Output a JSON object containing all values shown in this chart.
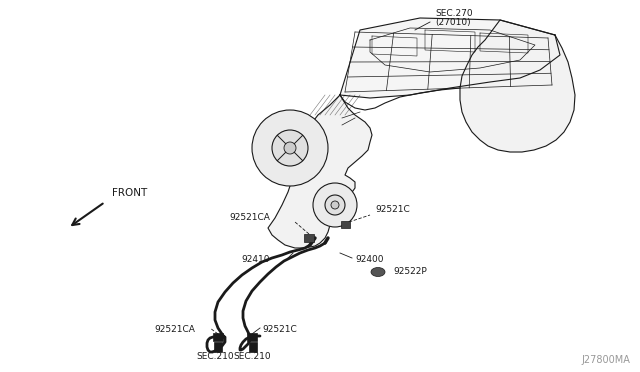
{
  "bg_color": "#ffffff",
  "line_color": "#1a1a1a",
  "text_color": "#1a1a1a",
  "fig_width": 6.4,
  "fig_height": 3.72,
  "dpi": 100,
  "watermark": "J27800MA",
  "sec270_text": "SEC.270",
  "sec270sub_text": "(27010)",
  "front_text": "FRONT",
  "label_92521ca_top": "92521CA",
  "label_92521c_top": "92521C",
  "label_92410": "92410",
  "label_92400": "92400",
  "label_92522p": "92522P",
  "label_92521ca_bot": "92521CA",
  "label_92521c_bot": "92521C",
  "label_sec210_left": "SEC.210",
  "label_sec210_right": "SEC.210"
}
